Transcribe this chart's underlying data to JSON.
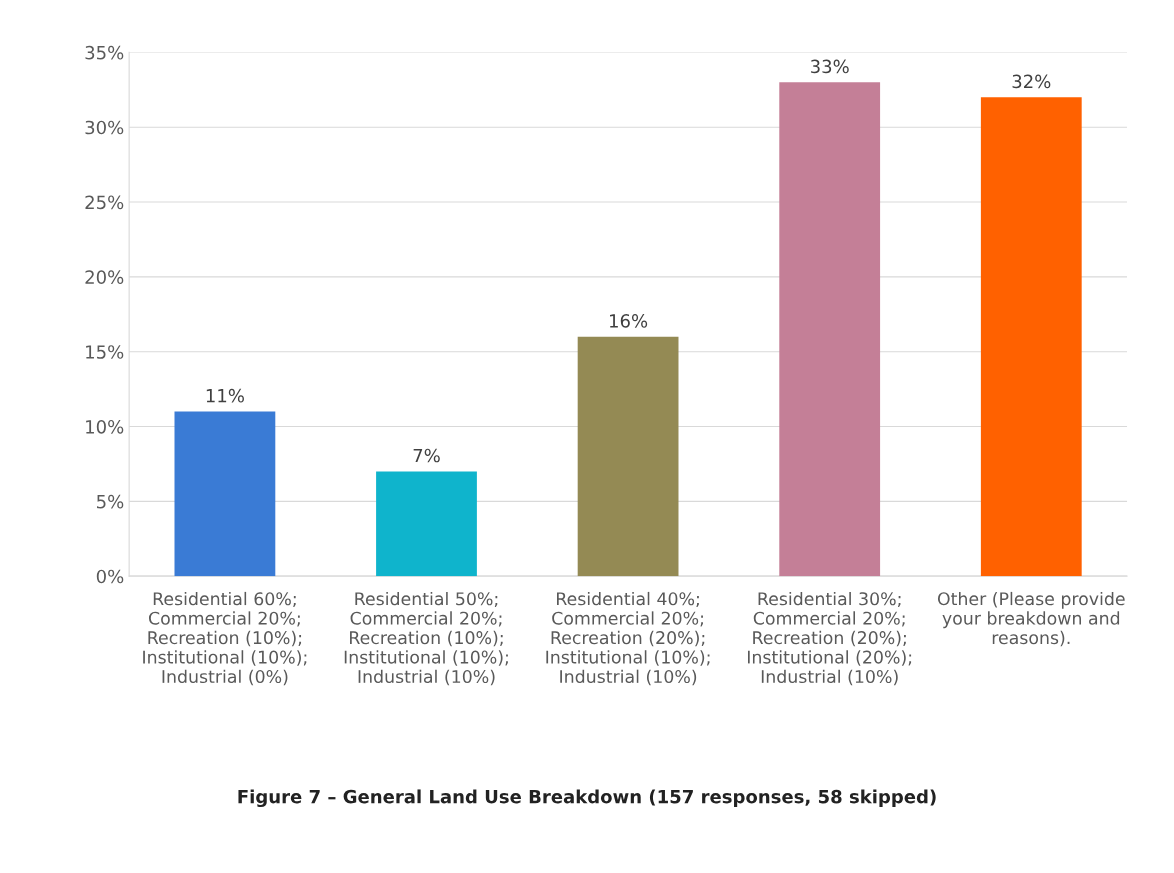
{
  "chart_data": {
    "type": "bar",
    "title": "Figure 7 – General Land Use Breakdown (157 responses, 58 skipped)",
    "categories": [
      "Residential 60%; Commercial 20%; Recreation (10%); Institutional (10%); Industrial (0%)",
      "Residential 50%; Commercial 20%; Recreation (10%); Institutional (10%); Industrial (10%)",
      "Residential 40%; Commercial 20%; Recreation (20%); Institutional (10%); Industrial (10%)",
      "Residential 30%; Commercial 20%; Recreation (20%); Institutional (20%); Industrial (10%)",
      "Other (Please provide your breakdown and reasons)."
    ],
    "values": [
      11,
      7,
      16,
      33,
      32
    ],
    "value_labels": [
      "11%",
      "7%",
      "16%",
      "33%",
      "32%"
    ],
    "colors": [
      "#3a7bd5",
      "#0fb4cc",
      "#948a54",
      "#c47f97",
      "#ff6100"
    ],
    "ylim": [
      0,
      35
    ],
    "yticks": [
      {
        "value": 0,
        "label": "0%"
      },
      {
        "value": 5,
        "label": "5%"
      },
      {
        "value": 10,
        "label": "10%"
      },
      {
        "value": 15,
        "label": "15%"
      },
      {
        "value": 20,
        "label": "20%"
      },
      {
        "value": 25,
        "label": "25%"
      },
      {
        "value": 30,
        "label": "30%"
      },
      {
        "value": 35,
        "label": "35%"
      }
    ],
    "grid": "y",
    "legend": false
  }
}
